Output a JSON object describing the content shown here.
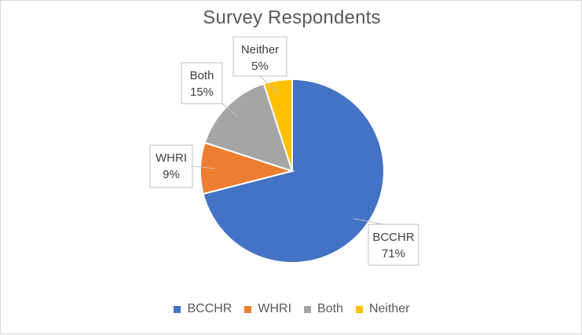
{
  "chart_data": {
    "type": "pie",
    "title": "Survey Respondents",
    "categories": [
      "BCCHR",
      "WHRI",
      "Both",
      "Neither"
    ],
    "values": [
      71,
      9,
      15,
      5
    ],
    "value_labels": [
      "71%",
      "9%",
      "15%",
      "5%"
    ],
    "colors": [
      "#4472C4",
      "#ED7D31",
      "#A5A5A5",
      "#FFC000"
    ],
    "legend_position": "bottom",
    "start_angle_deg": 0,
    "direction": "clockwise"
  }
}
